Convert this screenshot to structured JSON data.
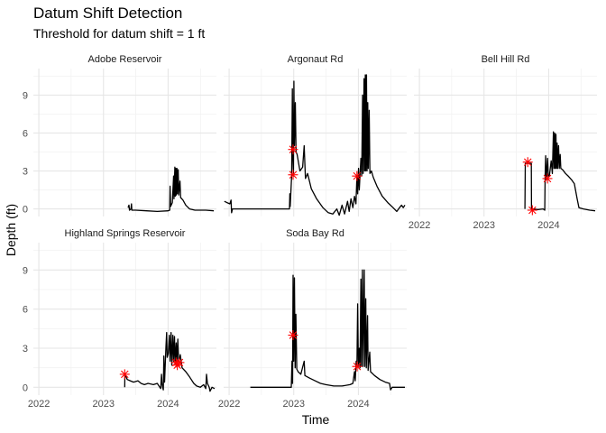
{
  "chart_data": {
    "type": "line",
    "title": "Datum Shift Detection",
    "subtitle": "Threshold for datum shift = 1 ft",
    "xlabel": "Time",
    "ylabel": "Depth (ft)",
    "x_ticks": [
      "2022",
      "2023",
      "2024"
    ],
    "xlim": [
      "2021-12-01",
      "2024-09-30"
    ],
    "y_ticks": [
      0,
      3,
      6,
      9
    ],
    "ylim": [
      -0.6,
      11.1
    ],
    "grid": true,
    "line_color": "#000000",
    "marker_color": "#ff0000",
    "marker_symbol": "asterisk",
    "panels": [
      {
        "name": "Adobe Reservoir",
        "series": [
          [
            "2023-05-20",
            0.1
          ],
          [
            "2023-05-25",
            0.3
          ],
          [
            "2023-05-28",
            -0.1
          ],
          [
            "2023-06-05",
            0.0
          ],
          [
            "2023-06-08",
            0.4
          ],
          [
            "2023-06-10",
            -0.1
          ],
          [
            "2023-07-01",
            -0.1
          ],
          [
            "2023-09-01",
            -0.15
          ],
          [
            "2023-11-01",
            -0.2
          ],
          [
            "2024-01-01",
            -0.15
          ],
          [
            "2024-01-10",
            -0.1
          ],
          [
            "2024-01-12",
            1.8
          ],
          [
            "2024-01-15",
            0.2
          ],
          [
            "2024-01-25",
            0.5
          ],
          [
            "2024-02-01",
            2.6
          ],
          [
            "2024-02-03",
            0.8
          ],
          [
            "2024-02-08",
            3.3
          ],
          [
            "2024-02-10",
            1.0
          ],
          [
            "2024-02-14",
            3.2
          ],
          [
            "2024-02-16",
            1.1
          ],
          [
            "2024-02-20",
            3.2
          ],
          [
            "2024-02-22",
            1.2
          ],
          [
            "2024-02-27",
            3.1
          ],
          [
            "2024-03-01",
            1.1
          ],
          [
            "2024-03-08",
            2.2
          ],
          [
            "2024-03-12",
            0.9
          ],
          [
            "2024-03-25",
            0.7
          ],
          [
            "2024-04-10",
            0.3
          ],
          [
            "2024-05-01",
            0.0
          ],
          [
            "2024-06-01",
            -0.1
          ],
          [
            "2024-08-01",
            -0.1
          ],
          [
            "2024-09-15",
            -0.15
          ]
        ],
        "shifts": []
      },
      {
        "name": "Argonaut Rd",
        "series": [
          [
            "2021-12-05",
            0.6
          ],
          [
            "2021-12-20",
            0.5
          ],
          [
            "2022-01-05",
            0.4
          ],
          [
            "2022-01-12",
            0.7
          ],
          [
            "2022-01-15",
            -0.3
          ],
          [
            "2022-01-20",
            0.0
          ],
          [
            "2022-02-05",
            0.0
          ],
          [
            "2022-05-01",
            0.0
          ],
          [
            "2022-09-01",
            0.0
          ],
          [
            "2022-12-01",
            0.0
          ],
          [
            "2022-12-08",
            0.0
          ],
          [
            "2022-12-10",
            1.2
          ],
          [
            "2022-12-12",
            0.2
          ],
          [
            "2022-12-20",
            2.6
          ],
          [
            "2022-12-24",
            9.5
          ],
          [
            "2022-12-27",
            4.0
          ],
          [
            "2022-12-30",
            2.6
          ],
          [
            "2023-01-02",
            10.1
          ],
          [
            "2023-01-05",
            5.0
          ],
          [
            "2023-01-10",
            8.4
          ],
          [
            "2023-01-14",
            4.5
          ],
          [
            "2023-01-20",
            4.3
          ],
          [
            "2023-02-05",
            3.0
          ],
          [
            "2023-02-20",
            3.3
          ],
          [
            "2023-03-01",
            5.0
          ],
          [
            "2023-03-08",
            2.4
          ],
          [
            "2023-03-20",
            2.8
          ],
          [
            "2023-04-10",
            1.6
          ],
          [
            "2023-05-10",
            0.8
          ],
          [
            "2023-06-15",
            0.1
          ],
          [
            "2023-07-15",
            -0.3
          ],
          [
            "2023-08-10",
            -0.4
          ],
          [
            "2023-09-01",
            0.0
          ],
          [
            "2023-09-15",
            -0.5
          ],
          [
            "2023-10-01",
            0.3
          ],
          [
            "2023-10-15",
            -0.4
          ],
          [
            "2023-11-01",
            0.6
          ],
          [
            "2023-11-10",
            -0.2
          ],
          [
            "2023-11-20",
            0.8
          ],
          [
            "2023-12-01",
            0.1
          ],
          [
            "2023-12-10",
            1.0
          ],
          [
            "2023-12-18",
            0.4
          ],
          [
            "2023-12-24",
            2.6
          ],
          [
            "2023-12-28",
            1.2
          ],
          [
            "2024-01-02",
            3.2
          ],
          [
            "2024-01-06",
            1.5
          ],
          [
            "2024-01-15",
            4.0
          ],
          [
            "2024-01-20",
            2.6
          ],
          [
            "2024-01-25",
            9.0
          ],
          [
            "2024-01-28",
            2.8
          ],
          [
            "2024-02-02",
            10.3
          ],
          [
            "2024-02-05",
            3.0
          ],
          [
            "2024-02-09",
            10.6
          ],
          [
            "2024-02-12",
            3.0
          ],
          [
            "2024-02-16",
            10.6
          ],
          [
            "2024-02-19",
            3.0
          ],
          [
            "2024-02-23",
            8.4
          ],
          [
            "2024-02-26",
            3.2
          ],
          [
            "2024-03-02",
            7.8
          ],
          [
            "2024-03-06",
            2.8
          ],
          [
            "2024-03-15",
            3.0
          ],
          [
            "2024-03-25",
            2.5
          ],
          [
            "2024-04-15",
            1.8
          ],
          [
            "2024-05-15",
            1.0
          ],
          [
            "2024-06-15",
            0.5
          ],
          [
            "2024-07-15",
            0.1
          ],
          [
            "2024-08-05",
            -0.2
          ],
          [
            "2024-08-20",
            0.1
          ],
          [
            "2024-09-01",
            0.3
          ],
          [
            "2024-09-10",
            0.1
          ],
          [
            "2024-09-20",
            0.3
          ]
        ],
        "shifts": [
          [
            "2022-12-28",
            2.7
          ],
          [
            "2022-12-28",
            4.7
          ],
          [
            "2023-12-24",
            2.6
          ]
        ]
      },
      {
        "name": "Bell Hill Rd",
        "series": [
          [
            "2023-08-20",
            0.0
          ],
          [
            "2023-08-22",
            3.6
          ],
          [
            "2023-09-10",
            3.6
          ],
          [
            "2023-09-25",
            3.6
          ],
          [
            "2023-09-26",
            -0.1
          ],
          [
            "2023-10-05",
            0.0
          ],
          [
            "2023-11-01",
            -0.05
          ],
          [
            "2023-12-01",
            0.0
          ],
          [
            "2023-12-10",
            -0.1
          ],
          [
            "2023-12-12",
            2.6
          ],
          [
            "2023-12-15",
            4.2
          ],
          [
            "2023-12-18",
            2.3
          ],
          [
            "2023-12-22",
            3.0
          ],
          [
            "2023-12-26",
            4.0
          ],
          [
            "2023-12-30",
            2.6
          ],
          [
            "2024-01-05",
            2.6
          ],
          [
            "2024-01-15",
            3.8
          ],
          [
            "2024-01-22",
            2.8
          ],
          [
            "2024-01-28",
            6.1
          ],
          [
            "2024-01-31",
            3.2
          ],
          [
            "2024-02-04",
            6.0
          ],
          [
            "2024-02-07",
            3.2
          ],
          [
            "2024-02-11",
            5.9
          ],
          [
            "2024-02-14",
            3.2
          ],
          [
            "2024-02-18",
            5.2
          ],
          [
            "2024-02-21",
            3.2
          ],
          [
            "2024-02-26",
            5.0
          ],
          [
            "2024-03-01",
            3.2
          ],
          [
            "2024-03-06",
            4.3
          ],
          [
            "2024-03-10",
            3.2
          ],
          [
            "2024-03-20",
            3.1
          ],
          [
            "2024-04-05",
            2.8
          ],
          [
            "2024-04-20",
            2.6
          ],
          [
            "2024-05-10",
            2.3
          ],
          [
            "2024-05-25",
            2.0
          ],
          [
            "2024-06-10",
            0.8
          ],
          [
            "2024-06-20",
            0.1
          ],
          [
            "2024-07-15",
            0.0
          ],
          [
            "2024-08-20",
            -0.1
          ],
          [
            "2024-09-20",
            -0.15
          ]
        ],
        "shifts": [
          [
            "2023-09-05",
            3.7
          ],
          [
            "2023-10-01",
            -0.1
          ],
          [
            "2023-12-25",
            2.4
          ]
        ]
      },
      {
        "name": "Highland Springs Reservoir",
        "series": [
          [
            "2023-05-01",
            0.0
          ],
          [
            "2023-05-02",
            1.0
          ],
          [
            "2023-05-15",
            0.6
          ],
          [
            "2023-06-01",
            0.5
          ],
          [
            "2023-06-20",
            0.4
          ],
          [
            "2023-07-15",
            0.5
          ],
          [
            "2023-08-01",
            0.3
          ],
          [
            "2023-08-20",
            0.2
          ],
          [
            "2023-09-10",
            0.3
          ],
          [
            "2023-10-10",
            0.2
          ],
          [
            "2023-11-01",
            0.3
          ],
          [
            "2023-11-15",
            0.0
          ],
          [
            "2023-11-20",
            -0.1
          ],
          [
            "2023-11-25",
            1.0
          ],
          [
            "2023-11-28",
            0.3
          ],
          [
            "2023-12-01",
            0.0
          ],
          [
            "2023-12-05",
            -0.2
          ],
          [
            "2023-12-08",
            2.4
          ],
          [
            "2023-12-12",
            0.4
          ],
          [
            "2023-12-20",
            3.1
          ],
          [
            "2023-12-24",
            4.2
          ],
          [
            "2023-12-27",
            2.3
          ],
          [
            "2024-01-02",
            2.6
          ],
          [
            "2024-01-08",
            4.0
          ],
          [
            "2024-01-12",
            2.0
          ],
          [
            "2024-01-18",
            4.2
          ],
          [
            "2024-01-22",
            1.7
          ],
          [
            "2024-01-28",
            4.0
          ],
          [
            "2024-02-01",
            2.0
          ],
          [
            "2024-02-06",
            3.9
          ],
          [
            "2024-02-10",
            1.8
          ],
          [
            "2024-02-16",
            3.4
          ],
          [
            "2024-02-20",
            2.0
          ],
          [
            "2024-02-25",
            3.7
          ],
          [
            "2024-03-01",
            1.8
          ],
          [
            "2024-03-10",
            2.5
          ],
          [
            "2024-03-20",
            1.5
          ],
          [
            "2024-04-10",
            1.2
          ],
          [
            "2024-05-01",
            0.8
          ],
          [
            "2024-05-25",
            0.3
          ],
          [
            "2024-06-10",
            0.1
          ],
          [
            "2024-07-01",
            0.0
          ],
          [
            "2024-07-20",
            0.2
          ],
          [
            "2024-08-01",
            -0.1
          ],
          [
            "2024-08-05",
            1.0
          ],
          [
            "2024-08-10",
            0.3
          ],
          [
            "2024-08-20",
            0.0
          ],
          [
            "2024-08-25",
            -0.3
          ],
          [
            "2024-09-05",
            0.0
          ],
          [
            "2024-09-20",
            -0.1
          ]
        ],
        "shifts": [
          [
            "2023-05-01",
            1.0
          ],
          [
            "2024-02-15",
            1.9
          ],
          [
            "2024-02-22",
            1.7
          ],
          [
            "2024-03-05",
            1.9
          ]
        ]
      },
      {
        "name": "Soda Bay Rd",
        "series": [
          [
            "2022-05-01",
            0.0
          ],
          [
            "2022-08-01",
            0.0
          ],
          [
            "2022-11-01",
            0.0
          ],
          [
            "2022-12-15",
            0.0
          ],
          [
            "2022-12-18",
            0.0
          ],
          [
            "2022-12-22",
            2.0
          ],
          [
            "2022-12-25",
            0.3
          ],
          [
            "2022-12-28",
            8.6
          ],
          [
            "2023-01-01",
            2.0
          ],
          [
            "2023-01-05",
            8.4
          ],
          [
            "2023-01-09",
            1.5
          ],
          [
            "2023-01-13",
            5.6
          ],
          [
            "2023-01-18",
            1.4
          ],
          [
            "2023-01-25",
            1.2
          ],
          [
            "2023-02-10",
            1.0
          ],
          [
            "2023-03-01",
            2.0
          ],
          [
            "2023-03-05",
            0.9
          ],
          [
            "2023-04-01",
            0.7
          ],
          [
            "2023-05-01",
            0.5
          ],
          [
            "2023-06-01",
            0.3
          ],
          [
            "2023-07-01",
            0.2
          ],
          [
            "2023-08-15",
            0.1
          ],
          [
            "2023-10-01",
            0.1
          ],
          [
            "2023-11-15",
            0.2
          ],
          [
            "2023-12-01",
            0.3
          ],
          [
            "2023-12-10",
            1.2
          ],
          [
            "2023-12-14",
            0.5
          ],
          [
            "2023-12-20",
            2.0
          ],
          [
            "2023-12-24",
            1.6
          ],
          [
            "2023-12-28",
            6.4
          ],
          [
            "2024-01-01",
            1.6
          ],
          [
            "2024-01-06",
            3.0
          ],
          [
            "2024-01-10",
            1.5
          ],
          [
            "2024-01-15",
            8.3
          ],
          [
            "2024-01-18",
            1.6
          ],
          [
            "2024-01-24",
            9.0
          ],
          [
            "2024-01-27",
            1.6
          ],
          [
            "2024-02-03",
            9.0
          ],
          [
            "2024-02-06",
            1.6
          ],
          [
            "2024-02-12",
            6.8
          ],
          [
            "2024-02-15",
            1.5
          ],
          [
            "2024-02-22",
            5.5
          ],
          [
            "2024-02-25",
            1.3
          ],
          [
            "2024-03-05",
            2.7
          ],
          [
            "2024-03-10",
            1.2
          ],
          [
            "2024-04-01",
            0.9
          ],
          [
            "2024-05-01",
            0.6
          ],
          [
            "2024-06-01",
            0.4
          ],
          [
            "2024-06-25",
            0.3
          ],
          [
            "2024-07-01",
            -0.2
          ],
          [
            "2024-07-10",
            0.0
          ],
          [
            "2024-08-15",
            0.0
          ],
          [
            "2024-09-20",
            0.0
          ]
        ],
        "shifts": [
          [
            "2022-12-28",
            4.0
          ],
          [
            "2023-12-25",
            1.6
          ]
        ]
      }
    ]
  }
}
